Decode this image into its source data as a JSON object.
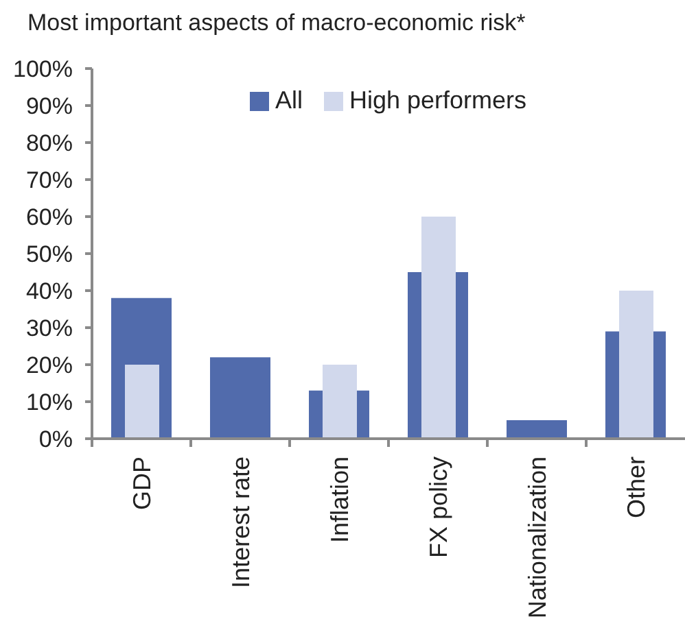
{
  "chart_data": {
    "type": "bar",
    "title": "Most important aspects of macro-economic risk*",
    "categories": [
      "GDP",
      "Interest rate",
      "Inflation",
      "FX policy",
      "Nationalization",
      "Other"
    ],
    "series": [
      {
        "name": "All",
        "color": "#516bac",
        "values": [
          38,
          22,
          13,
          45,
          5,
          29
        ]
      },
      {
        "name": "High performers",
        "color": "#d1d8ec",
        "values": [
          20,
          0,
          20,
          60,
          0,
          40
        ]
      }
    ],
    "ylim": [
      0,
      100
    ],
    "yticks": [
      {
        "value": 0,
        "label": "0%"
      },
      {
        "value": 10,
        "label": "10%"
      },
      {
        "value": 20,
        "label": "20%"
      },
      {
        "value": 30,
        "label": "30%"
      },
      {
        "value": 40,
        "label": "40%"
      },
      {
        "value": 50,
        "label": "50%"
      },
      {
        "value": 60,
        "label": "60%"
      },
      {
        "value": 70,
        "label": "70%"
      },
      {
        "value": 80,
        "label": "80%"
      },
      {
        "value": 90,
        "label": "90%"
      },
      {
        "value": 100,
        "label": "100%"
      }
    ],
    "legend": "top",
    "grid": false
  }
}
